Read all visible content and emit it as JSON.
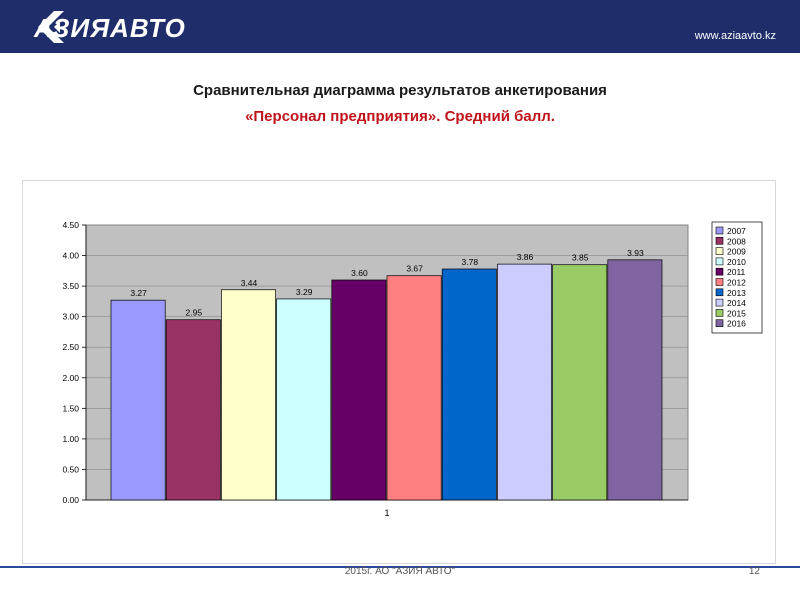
{
  "header": {
    "brand": "АЗИЯАВТО",
    "url": "www.aziaavto.kz",
    "bg_color": "#1f2d6b"
  },
  "title": {
    "line1": "Сравнительная диаграмма результатов анкетирования",
    "line2": "«Персонал предприятия». Средний балл.",
    "line2_color": "#c0141a"
  },
  "chart_data": {
    "type": "bar",
    "categories": [
      "1"
    ],
    "series": [
      {
        "name": "2007",
        "value": 3.27,
        "color": "#9999ff"
      },
      {
        "name": "2008",
        "value": 2.95,
        "color": "#993366"
      },
      {
        "name": "2009",
        "value": 3.44,
        "color": "#ffffcc"
      },
      {
        "name": "2010",
        "value": 3.29,
        "color": "#ccffff"
      },
      {
        "name": "2011",
        "value": 3.6,
        "color": "#660066"
      },
      {
        "name": "2012",
        "value": 3.67,
        "color": "#ff8080"
      },
      {
        "name": "2013",
        "value": 3.78,
        "color": "#0066cc"
      },
      {
        "name": "2014",
        "value": 3.86,
        "color": "#ccccff"
      },
      {
        "name": "2015",
        "value": 3.85,
        "color": "#99cc66"
      },
      {
        "name": "2016",
        "value": 3.93,
        "color": "#8064a2"
      }
    ],
    "value_labels": [
      "3.27",
      "2.95",
      "3.44",
      "3.29",
      "3.60",
      "3.67",
      "3.78",
      "3.86",
      "3.85",
      "3.93"
    ],
    "yticks": [
      "0.00",
      "0.50",
      "1.00",
      "1.50",
      "2.00",
      "2.50",
      "3.00",
      "3.50",
      "4.00",
      "4.50"
    ],
    "ylim": [
      0,
      4.5
    ],
    "grid": true,
    "legend_position": "right",
    "plot_bg_color": "#c0c0c0"
  },
  "footer": {
    "text": "2015г. АО \"АЗИЯ АВТО\"",
    "page": "12"
  }
}
